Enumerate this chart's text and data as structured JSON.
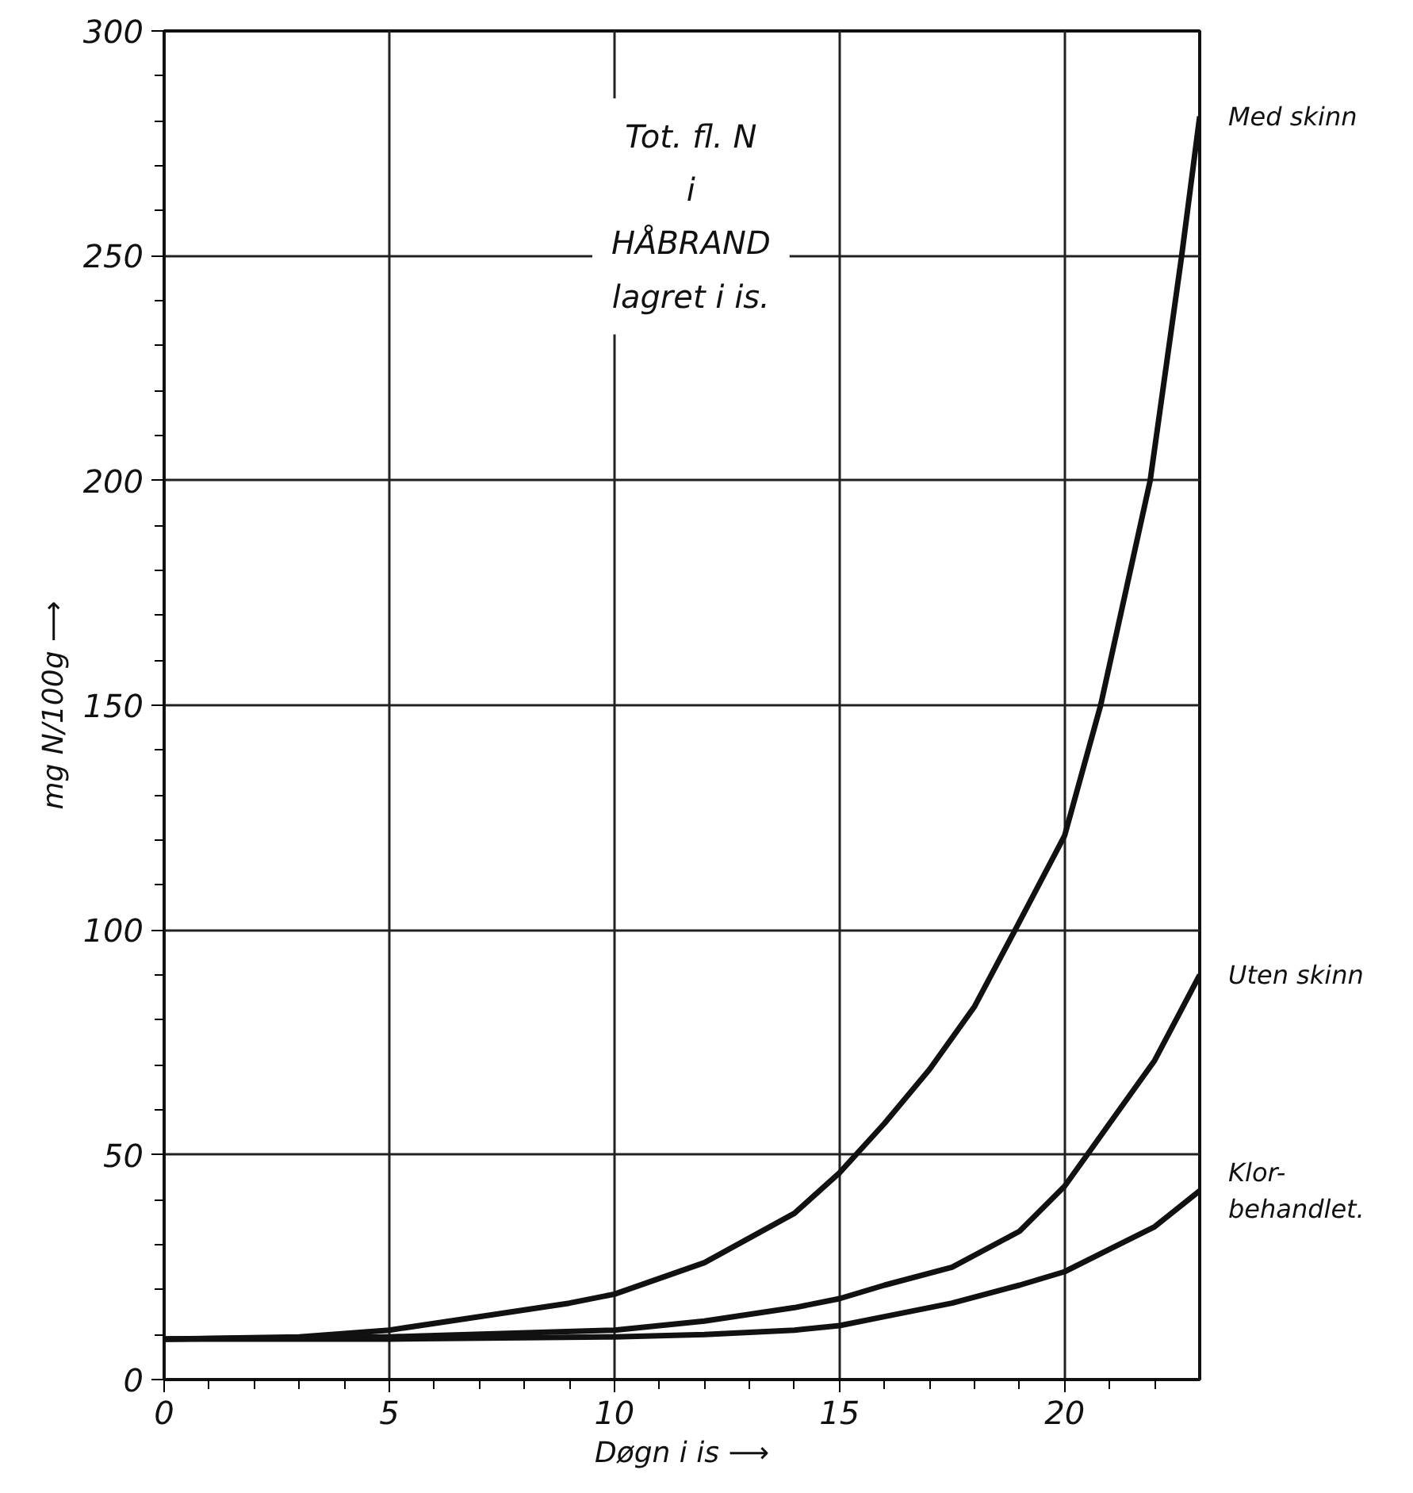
{
  "chart_data": {
    "type": "line",
    "title": "Tot. fl. N\ni\nHÅBRAND\nlagret i is.",
    "xlabel": "Døgn i is ⟶",
    "ylabel": "mg N/100g ⟶",
    "xlim": [
      0,
      23
    ],
    "ylim": [
      0,
      300
    ],
    "xticks": [
      0,
      {
        "value": 1,
        "label": null
      },
      {
        "value": 2,
        "label": null
      },
      {
        "value": 3,
        "label": null
      },
      {
        "value": 4,
        "label": null
      },
      5,
      {
        "value": 6,
        "label": null
      },
      {
        "value": 7,
        "label": null
      },
      {
        "value": 8,
        "label": null
      },
      {
        "value": 9,
        "label": null
      },
      10,
      {
        "value": 11,
        "label": null
      },
      {
        "value": 12,
        "label": null
      },
      {
        "value": 13,
        "label": null
      },
      {
        "value": 14,
        "label": null
      },
      15,
      {
        "value": 16,
        "label": null
      },
      {
        "value": 17,
        "label": null
      },
      {
        "value": 18,
        "label": null
      },
      {
        "value": 19,
        "label": null
      },
      20,
      {
        "value": 21,
        "label": null
      },
      {
        "value": 22,
        "label": null
      }
    ],
    "yticks": [
      0,
      {
        "value": 10,
        "label": null
      },
      {
        "value": 20,
        "label": null
      },
      {
        "value": 30,
        "label": null
      },
      {
        "value": 40,
        "label": null
      },
      50,
      {
        "value": 60,
        "label": null
      },
      {
        "value": 70,
        "label": null
      },
      {
        "value": 80,
        "label": null
      },
      {
        "value": 90,
        "label": null
      },
      100,
      {
        "value": 110,
        "label": null
      },
      {
        "value": 120,
        "label": null
      },
      {
        "value": 130,
        "label": null
      },
      {
        "value": 140,
        "label": null
      },
      150,
      {
        "value": 160,
        "label": null
      },
      {
        "value": 170,
        "label": null
      },
      {
        "value": 180,
        "label": null
      },
      {
        "value": 190,
        "label": null
      },
      200,
      {
        "value": 210,
        "label": null
      },
      {
        "value": 220,
        "label": null
      },
      {
        "value": 230,
        "label": null
      },
      {
        "value": 240,
        "label": null
      },
      250,
      {
        "value": 260,
        "label": null
      },
      {
        "value": 270,
        "label": null
      },
      {
        "value": 280,
        "label": null
      },
      {
        "value": 290,
        "label": null
      },
      300
    ],
    "grid": true,
    "marker": "none",
    "line_style": "solid",
    "series": [
      {
        "name": "Med skinn",
        "color": "#111111",
        "x": [
          0,
          3,
          5,
          7,
          9,
          10,
          12,
          14,
          15,
          16,
          17,
          18,
          18.9,
          20,
          20.8,
          21.9,
          22.6,
          23
        ],
        "values": [
          9,
          9.5,
          11,
          14,
          17,
          19,
          26,
          37,
          46,
          57,
          69,
          83,
          100,
          121,
          150,
          200,
          250,
          281
        ]
      },
      {
        "name": "Uten skinn",
        "color": "#111111",
        "x": [
          0,
          5,
          10,
          12,
          14,
          15,
          16,
          17.5,
          19,
          20,
          20.5,
          21,
          22,
          23
        ],
        "values": [
          9,
          9.5,
          11,
          13,
          16,
          18,
          21,
          25,
          33,
          43,
          50,
          57,
          71,
          90
        ]
      },
      {
        "name": "Klor-\nbehandlet.",
        "color": "#111111",
        "x": [
          0,
          5,
          10,
          12,
          14,
          15,
          16,
          17.5,
          19,
          20,
          21,
          22,
          23
        ],
        "values": [
          9,
          9,
          9.5,
          10,
          11,
          12,
          14,
          17,
          21,
          24,
          29,
          34,
          42
        ]
      }
    ]
  }
}
